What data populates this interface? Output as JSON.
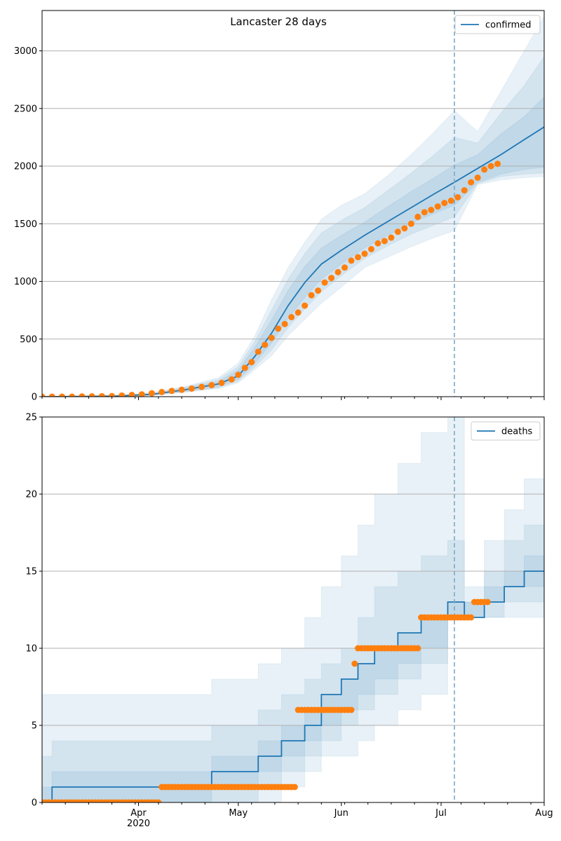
{
  "colors": {
    "line": "#1f77b4",
    "observed": "#ff7f0e",
    "band": "#1f77b4",
    "vline": "#7aa9c8",
    "grid": "#b0b0b0"
  },
  "x_ticks": {
    "major": [
      "Apr\n2020",
      "May",
      "Jun",
      "Jul",
      "Aug"
    ],
    "major_dates": [
      "2020-04-01",
      "2020-05-01",
      "2020-06-01",
      "2020-07-01",
      "2020-08-01"
    ]
  },
  "chart_data": [
    {
      "type": "line",
      "title": "Lancaster 28 days",
      "legend": {
        "entries": [
          "confirmed"
        ],
        "placement": "top-right"
      },
      "grid": true,
      "x_range": [
        "2020-03-03",
        "2020-08-01"
      ],
      "vline_date": "2020-07-05",
      "ylim": [
        0,
        3350
      ],
      "y_ticks": [
        0,
        500,
        1000,
        1500,
        2000,
        2500,
        3000
      ],
      "model": {
        "name": "confirmed",
        "dates": [
          "2020-03-03",
          "2020-03-15",
          "2020-03-25",
          "2020-04-05",
          "2020-04-15",
          "2020-04-25",
          "2020-05-01",
          "2020-05-06",
          "2020-05-11",
          "2020-05-16",
          "2020-05-21",
          "2020-05-26",
          "2020-06-01",
          "2020-06-08",
          "2020-06-15",
          "2020-06-22",
          "2020-06-29",
          "2020-07-05",
          "2020-07-12",
          "2020-07-19",
          "2020-07-26",
          "2020-08-01"
        ],
        "median": [
          0,
          2,
          5,
          20,
          60,
          110,
          180,
          350,
          550,
          790,
          990,
          1150,
          1270,
          1400,
          1520,
          1640,
          1760,
          1860,
          1980,
          2100,
          2230,
          2340
        ],
        "bands": [
          {
            "lo": [
              0,
              0,
              3,
              15,
              48,
              88,
              150,
              290,
              465,
              680,
              860,
              1020,
              1150,
              1290,
              1400,
              1505,
              1590,
              1660,
              1860,
              1930,
              1970,
              1990
            ],
            "hi": [
              0,
              3,
              7,
              25,
              72,
              130,
              230,
              430,
              665,
              920,
              1130,
              1290,
              1400,
              1515,
              1650,
              1780,
              1900,
              2010,
              2100,
              2280,
              2430,
              2600
            ]
          },
          {
            "lo": [
              0,
              0,
              2,
              12,
              42,
              78,
              135,
              260,
              405,
              600,
              760,
              910,
              1050,
              1200,
              1310,
              1410,
              1490,
              1560,
              1850,
              1910,
              1930,
              1940
            ],
            "hi": [
              0,
              4,
              8,
              30,
              82,
              148,
              260,
              480,
              750,
              1020,
              1240,
              1420,
              1530,
              1640,
              1790,
              1940,
              2100,
              2250,
              2200,
              2460,
              2700,
              2950
            ]
          },
          {
            "lo": [
              0,
              0,
              1,
              10,
              38,
              70,
              120,
              235,
              355,
              530,
              670,
              810,
              950,
              1120,
              1210,
              1300,
              1380,
              1440,
              1840,
              1880,
              1900,
              1910
            ],
            "hi": [
              0,
              5,
              10,
              35,
              90,
              165,
              290,
              530,
              840,
              1120,
              1340,
              1540,
              1660,
              1760,
              1920,
              2100,
              2300,
              2480,
              2300,
              2650,
              3000,
              3300
            ]
          }
        ]
      },
      "observed": {
        "points": [
          [
            "2020-03-03",
            0
          ],
          [
            "2020-03-06",
            0
          ],
          [
            "2020-03-09",
            0
          ],
          [
            "2020-03-12",
            0
          ],
          [
            "2020-03-15",
            2
          ],
          [
            "2020-03-18",
            3
          ],
          [
            "2020-03-21",
            4
          ],
          [
            "2020-03-24",
            5
          ],
          [
            "2020-03-27",
            10
          ],
          [
            "2020-03-30",
            15
          ],
          [
            "2020-04-02",
            20
          ],
          [
            "2020-04-05",
            30
          ],
          [
            "2020-04-08",
            40
          ],
          [
            "2020-04-11",
            50
          ],
          [
            "2020-04-14",
            60
          ],
          [
            "2020-04-17",
            70
          ],
          [
            "2020-04-20",
            85
          ],
          [
            "2020-04-23",
            100
          ],
          [
            "2020-04-26",
            120
          ],
          [
            "2020-04-29",
            150
          ],
          [
            "2020-05-01",
            190
          ],
          [
            "2020-05-03",
            250
          ],
          [
            "2020-05-05",
            300
          ],
          [
            "2020-05-07",
            390
          ],
          [
            "2020-05-09",
            450
          ],
          [
            "2020-05-11",
            510
          ],
          [
            "2020-05-13",
            590
          ],
          [
            "2020-05-15",
            630
          ],
          [
            "2020-05-17",
            690
          ],
          [
            "2020-05-19",
            730
          ],
          [
            "2020-05-21",
            790
          ],
          [
            "2020-05-23",
            880
          ],
          [
            "2020-05-25",
            920
          ],
          [
            "2020-05-27",
            990
          ],
          [
            "2020-05-29",
            1030
          ],
          [
            "2020-05-31",
            1080
          ],
          [
            "2020-06-02",
            1120
          ],
          [
            "2020-06-04",
            1180
          ],
          [
            "2020-06-06",
            1210
          ],
          [
            "2020-06-08",
            1240
          ],
          [
            "2020-06-10",
            1280
          ],
          [
            "2020-06-12",
            1330
          ],
          [
            "2020-06-14",
            1350
          ],
          [
            "2020-06-16",
            1380
          ],
          [
            "2020-06-18",
            1430
          ],
          [
            "2020-06-20",
            1460
          ],
          [
            "2020-06-22",
            1500
          ],
          [
            "2020-06-24",
            1560
          ],
          [
            "2020-06-26",
            1600
          ],
          [
            "2020-06-28",
            1620
          ],
          [
            "2020-06-30",
            1650
          ],
          [
            "2020-07-02",
            1680
          ],
          [
            "2020-07-04",
            1700
          ],
          [
            "2020-07-06",
            1730
          ],
          [
            "2020-07-08",
            1790
          ],
          [
            "2020-07-10",
            1860
          ],
          [
            "2020-07-12",
            1900
          ],
          [
            "2020-07-14",
            1970
          ],
          [
            "2020-07-16",
            2000
          ],
          [
            "2020-07-18",
            2020
          ]
        ]
      }
    },
    {
      "type": "line",
      "legend": {
        "entries": [
          "deaths"
        ],
        "placement": "top-right"
      },
      "grid": true,
      "x_range": [
        "2020-03-03",
        "2020-08-01"
      ],
      "vline_date": "2020-07-05",
      "ylim": [
        0,
        25
      ],
      "y_ticks": [
        0,
        5,
        10,
        15,
        20,
        25
      ],
      "model": {
        "name": "deaths",
        "dates": [
          "2020-03-03",
          "2020-03-06",
          "2020-04-23",
          "2020-05-01",
          "2020-05-07",
          "2020-05-14",
          "2020-05-21",
          "2020-05-26",
          "2020-06-01",
          "2020-06-06",
          "2020-06-11",
          "2020-06-18",
          "2020-06-25",
          "2020-07-03",
          "2020-07-08",
          "2020-07-14",
          "2020-07-20",
          "2020-07-26",
          "2020-08-01"
        ],
        "median": [
          0,
          1,
          2,
          2,
          3,
          4,
          5,
          7,
          8,
          9,
          10,
          11,
          12,
          13,
          12,
          13,
          14,
          15,
          15
        ],
        "bands": [
          {
            "lo": [
              0,
              0,
              0,
              1,
              1,
              2,
              3,
              4,
              5,
              6,
              7,
              8,
              9,
              10,
              12,
              12,
              13,
              14,
              14
            ],
            "hi": [
              1,
              2,
              3,
              3,
              4,
              5,
              6,
              7,
              8,
              9,
              10,
              11,
              12,
              13,
              13,
              14,
              15,
              16,
              17
            ]
          },
          {
            "lo": [
              0,
              0,
              0,
              0,
              0,
              1,
              2,
              3,
              4,
              5,
              6,
              7,
              8,
              9,
              12,
              12,
              12,
              13,
              13
            ],
            "hi": [
              3,
              4,
              5,
              5,
              6,
              7,
              8,
              9,
              10,
              12,
              14,
              15,
              16,
              17,
              13,
              15,
              17,
              18,
              19
            ]
          },
          {
            "lo": [
              0,
              0,
              0,
              0,
              0,
              0,
              1,
              2,
              3,
              3,
              4,
              5,
              6,
              7,
              12,
              12,
              12,
              12,
              12
            ],
            "hi": [
              7,
              7,
              8,
              8,
              9,
              10,
              12,
              14,
              16,
              18,
              20,
              22,
              24,
              25,
              14,
              17,
              19,
              21,
              23
            ]
          }
        ]
      },
      "observed": {
        "segments": [
          {
            "from": "2020-03-03",
            "to": "2020-04-07",
            "value": 0
          },
          {
            "from": "2020-04-08",
            "to": "2020-05-18",
            "value": 1
          },
          {
            "from": "2020-05-19",
            "to": "2020-06-04",
            "value": 6
          },
          {
            "from": "2020-06-05",
            "to": "2020-06-05",
            "value": 9
          },
          {
            "from": "2020-06-06",
            "to": "2020-06-24",
            "value": 10
          },
          {
            "from": "2020-06-25",
            "to": "2020-07-10",
            "value": 12
          },
          {
            "from": "2020-07-11",
            "to": "2020-07-15",
            "value": 13
          }
        ]
      }
    }
  ]
}
